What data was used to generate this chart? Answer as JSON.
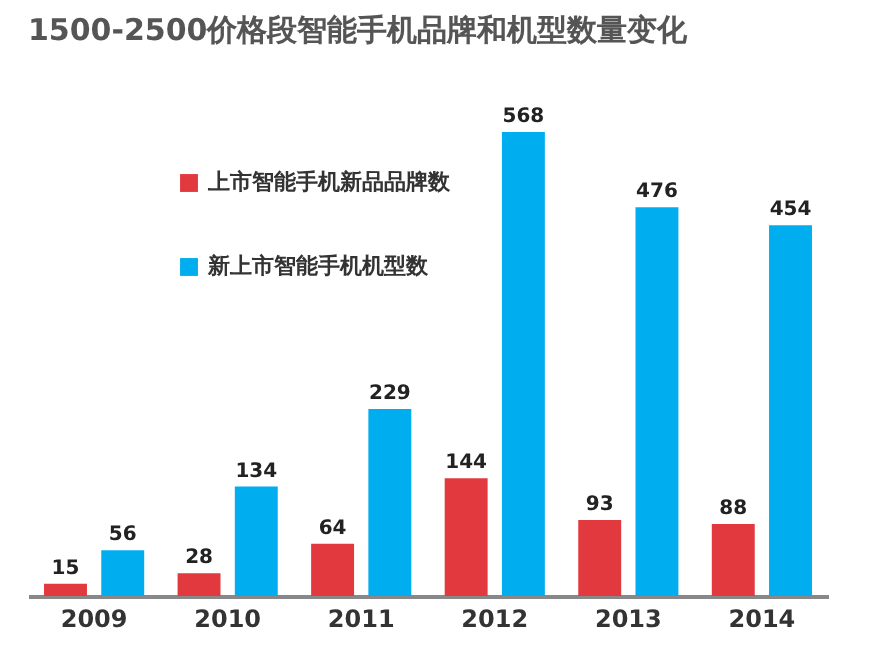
{
  "chart_data": {
    "type": "bar",
    "title": "1500-2500价格段智能手机品牌和机型数量变化",
    "categories": [
      "2009",
      "2010",
      "2011",
      "2012",
      "2013",
      "2014"
    ],
    "series": [
      {
        "name": "上市智能手机新品品牌数",
        "color": "#e2393f",
        "values": [
          15,
          28,
          64,
          144,
          93,
          88
        ]
      },
      {
        "name": "新上市智能手机机型数",
        "color": "#00aeef",
        "values": [
          56,
          134,
          229,
          568,
          476,
          454
        ]
      }
    ],
    "data_labels": true,
    "legend": "top left",
    "grid": false
  }
}
